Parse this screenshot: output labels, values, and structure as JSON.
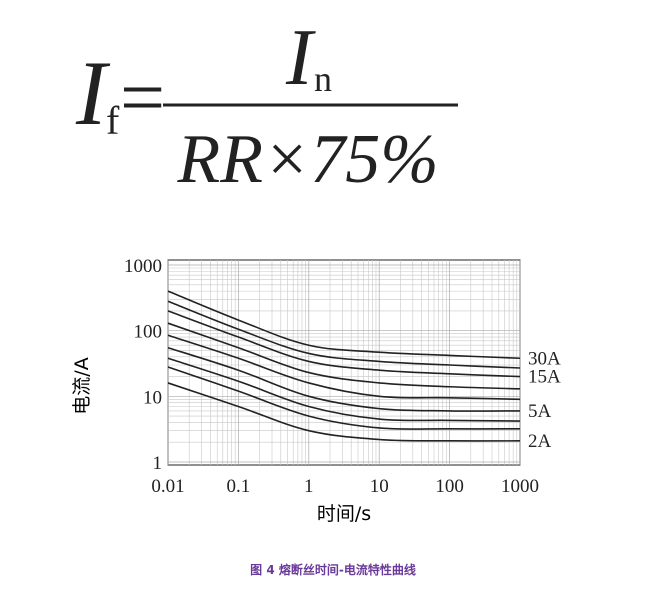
{
  "formula": {
    "lhs": "I",
    "lhs_sub": "f",
    "eq": "=",
    "num": "I",
    "num_sub": "n",
    "den": "RR×75%"
  },
  "chart_data": {
    "type": "line",
    "xlabel": "时间/s",
    "ylabel": "电流/A",
    "x": [
      0.01,
      0.1,
      1,
      10,
      100,
      1000
    ],
    "xlim": [
      0.01,
      1000
    ],
    "xticks": [
      0.01,
      0.1,
      1,
      10,
      100,
      1000
    ],
    "xscale": "log",
    "ylim": [
      1,
      1000
    ],
    "yticks": [
      1,
      10,
      100,
      1000
    ],
    "yscale": "log",
    "grid": true,
    "color": "#222222",
    "series": [
      {
        "name": "30A",
        "values": [
          400,
          145,
          60,
          47,
          42,
          38
        ]
      },
      {
        "values": [
          280,
          105,
          45,
          34,
          30,
          27
        ]
      },
      {
        "name": "15A",
        "values": [
          200,
          80,
          34,
          25,
          22,
          20
        ]
      },
      {
        "values": [
          130,
          55,
          23,
          16,
          14,
          13
        ]
      },
      {
        "values": [
          85,
          38,
          16,
          10,
          9.5,
          9
        ]
      },
      {
        "name": "5A",
        "values": [
          55,
          25,
          10,
          6.5,
          6,
          6
        ]
      },
      {
        "values": [
          38,
          17,
          7,
          4.5,
          4.3,
          4.2
        ]
      },
      {
        "values": [
          28,
          12,
          5,
          3.3,
          3.2,
          3.2
        ]
      },
      {
        "name": "2A",
        "values": [
          16,
          7,
          3,
          2.2,
          2.1,
          2.1
        ]
      }
    ]
  },
  "caption": "图 4 熔断丝时间-电流特性曲线"
}
